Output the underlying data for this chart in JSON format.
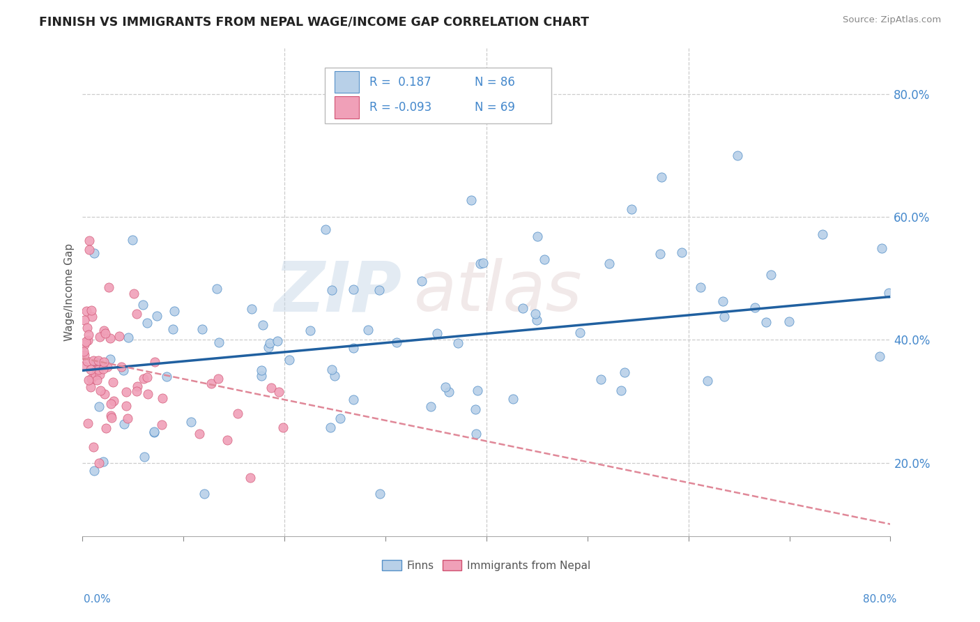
{
  "title": "FINNISH VS IMMIGRANTS FROM NEPAL WAGE/INCOME GAP CORRELATION CHART",
  "source": "Source: ZipAtlas.com",
  "ylabel": "Wage/Income Gap",
  "R1": 0.187,
  "N1": 86,
  "R2": -0.093,
  "N2": 69,
  "color_finns_fill": "#b8d0e8",
  "color_finns_edge": "#5590c8",
  "color_finns_line": "#2060a0",
  "color_nepal_fill": "#f0a0b8",
  "color_nepal_edge": "#d05070",
  "color_nepal_line": "#e08898",
  "background_color": "#ffffff",
  "grid_color": "#cccccc",
  "legend_label_1": "Finns",
  "legend_label_2": "Immigrants from Nepal",
  "watermark_zip_color": "#c8d8e8",
  "watermark_atlas_color": "#ddc8c8",
  "title_color": "#222222",
  "source_color": "#888888",
  "axis_label_color": "#4488cc",
  "ylabel_color": "#555555"
}
